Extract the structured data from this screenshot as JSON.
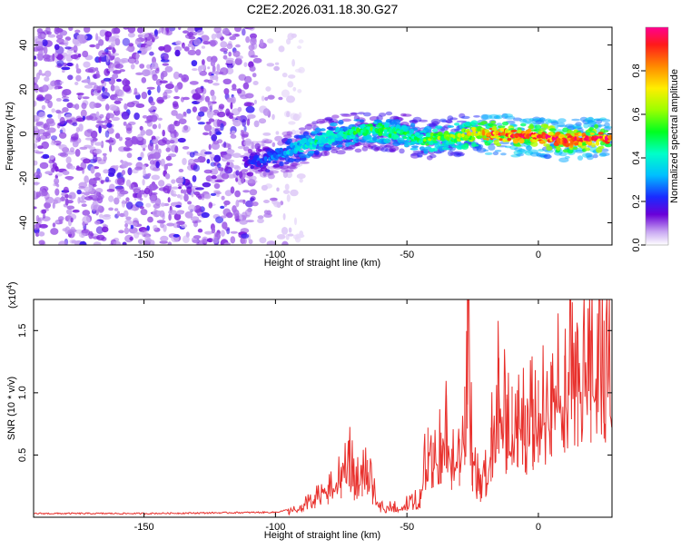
{
  "title": "C2E2.2026.031.18.30.G27",
  "chart_data": [
    {
      "type": "heatmap",
      "title": "C2E2.2026.031.18.30.G27",
      "xlabel": "Height of straight line (km)",
      "ylabel": "Frequency (Hz)",
      "xlim": [
        -192,
        28
      ],
      "ylim": [
        -50,
        48
      ],
      "xticks": [
        "-150",
        "-100",
        "-50",
        "0"
      ],
      "xtick_values": [
        -150,
        -100,
        -50,
        0
      ],
      "yticks": [
        "40",
        "20",
        "0",
        "-20",
        "-40"
      ],
      "ytick_values": [
        40,
        20,
        0,
        -20,
        -40
      ],
      "colorbar": {
        "label": "Normalized spectral amplitude",
        "range": [
          0,
          1
        ],
        "ticks": [
          "0.0",
          "0.2",
          "0.4",
          "0.6",
          "0.8"
        ],
        "tick_values": [
          0.0,
          0.2,
          0.4,
          0.6,
          0.8
        ]
      },
      "ridge": {
        "x": [
          -111,
          -105,
          -100,
          -95,
          -90,
          -85,
          -80,
          -75,
          -70,
          -60,
          -50,
          -45,
          -40,
          -30,
          -25,
          -20,
          -15,
          -10,
          0,
          10,
          20,
          27
        ],
        "y": [
          -13,
          -12,
          -10,
          -8,
          -6,
          -4,
          -2,
          0,
          1,
          2,
          0,
          -3,
          -2,
          -1,
          0,
          0,
          0,
          -1,
          -1,
          -3,
          -2,
          -2
        ],
        "amplitude": [
          0.2,
          0.25,
          0.3,
          0.35,
          0.4,
          0.45,
          0.45,
          0.45,
          0.5,
          0.55,
          0.5,
          0.55,
          0.6,
          0.65,
          0.75,
          0.85,
          0.95,
          0.95,
          0.95,
          0.95,
          0.95,
          0.95
        ]
      },
      "noise_region": [
        -192,
        -100
      ]
    },
    {
      "type": "line",
      "xlabel": "Height of straight line (km)",
      "ylabel": "SNR (10 * v/v)",
      "scale_label": "(x10",
      "scale_exp": "4",
      "scale_close": ")",
      "xlim": [
        -192,
        28
      ],
      "ylim": [
        0,
        1.75
      ],
      "xticks": [
        "-150",
        "-100",
        "-50",
        "0"
      ],
      "xtick_values": [
        -150,
        -100,
        -50,
        0
      ],
      "yticks": [
        "0.5",
        "1.0",
        "1.5"
      ],
      "ytick_values": [
        0.5,
        1.0,
        1.5
      ],
      "series": [
        {
          "name": "SNR",
          "color": "#e8302c",
          "x": [
            -192,
            -150,
            -100,
            -95,
            -90,
            -85,
            -80,
            -75,
            -72,
            -70,
            -67,
            -65,
            -63,
            -60,
            -55,
            -50,
            -45,
            -42,
            -40,
            -37,
            -35,
            -33,
            -30,
            -28,
            -27,
            -25,
            -22,
            -20,
            -18,
            -15,
            -12,
            -10,
            -8,
            -5,
            -2,
            0,
            5,
            10,
            15,
            20,
            25,
            28
          ],
          "y": [
            0.03,
            0.03,
            0.04,
            0.06,
            0.1,
            0.18,
            0.26,
            0.38,
            0.62,
            0.34,
            0.42,
            0.46,
            0.26,
            0.1,
            0.11,
            0.13,
            0.18,
            0.72,
            0.6,
            0.68,
            0.98,
            0.55,
            0.63,
            1.05,
            1.78,
            0.52,
            0.31,
            0.41,
            0.72,
            1.28,
            0.95,
            1.05,
            1.02,
            0.9,
            0.95,
            1.1,
            1.22,
            1.3,
            1.42,
            1.5,
            1.58,
            1.62
          ]
        }
      ]
    }
  ]
}
